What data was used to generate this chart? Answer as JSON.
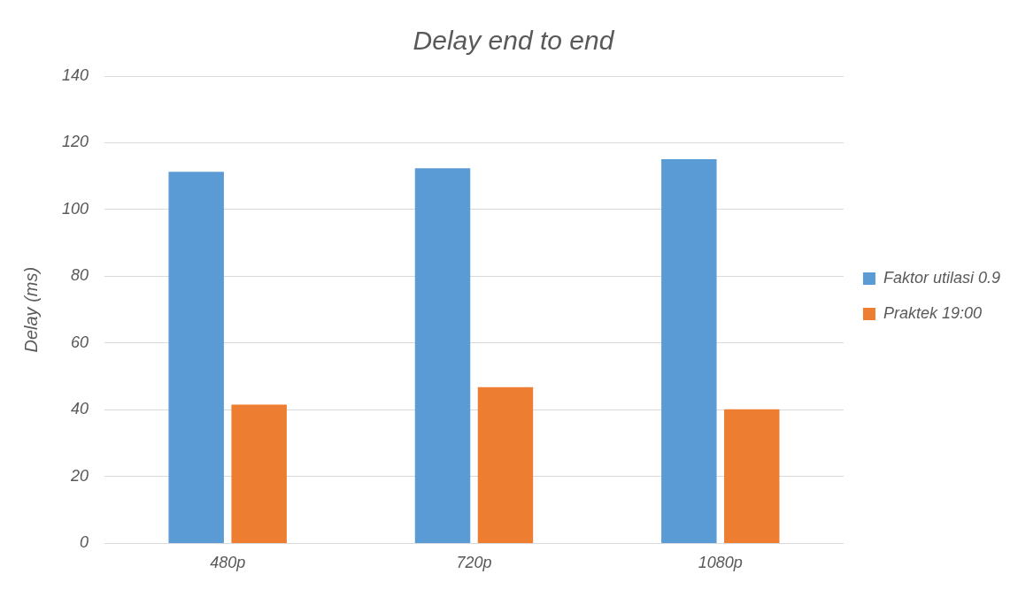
{
  "chart_data": {
    "type": "bar",
    "title": "Delay end to end",
    "ylabel": "Delay (ms)",
    "categories": [
      "480p",
      "720p",
      "1080p"
    ],
    "series": [
      {
        "name": "Faktor utilasi 0.9",
        "color": "#5b9bd5",
        "values": [
          111.3,
          112.4,
          115.1
        ]
      },
      {
        "name": "Praktek 19:00",
        "color": "#ed7d31",
        "values": [
          41.6,
          46.8,
          40.2
        ]
      }
    ],
    "ylim": [
      0,
      140
    ],
    "yticks": [
      0,
      20,
      40,
      60,
      80,
      100,
      120,
      140
    ],
    "grid": "y",
    "legend": "right"
  }
}
